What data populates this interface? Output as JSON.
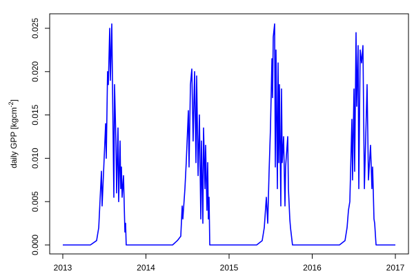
{
  "chart_data": {
    "type": "line",
    "title": "",
    "xlabel": "",
    "ylabel": "daily GPP [kgcm",
    "ylabel_sup": "-2",
    "ylabel_end": "]",
    "xlim": [
      2013,
      2017
    ],
    "ylim": [
      0,
      0.025
    ],
    "grid": false,
    "line_color": "#0000ff",
    "x_ticks": [
      2013,
      2014,
      2015,
      2016,
      2017
    ],
    "x_tick_labels": [
      "2013",
      "2014",
      "2015",
      "2016",
      "2017"
    ],
    "y_ticks": [
      0,
      0.005,
      0.01,
      0.015,
      0.02,
      0.025
    ],
    "y_tick_labels": [
      "0.000",
      "0.005",
      "0.010",
      "0.015",
      "0.020",
      "0.025"
    ],
    "series": [
      {
        "x": [
          2013.0,
          2013.332,
          2013.407,
          2013.432,
          2013.465,
          2013.473,
          2013.515,
          2013.523,
          2013.539,
          2013.548,
          2013.564,
          2013.573,
          2013.589,
          2013.614,
          2013.622,
          2013.639,
          2013.647,
          2013.664,
          2013.672,
          2013.689,
          2013.697,
          2013.705,
          2013.714,
          2013.73,
          2013.747,
          2013.755,
          2013.763,
          2014.32,
          2014.378,
          2014.419,
          2014.436,
          2014.444,
          2014.469,
          2014.485,
          2014.51,
          2014.519,
          2014.535,
          2014.552,
          2014.568,
          2014.585,
          2014.602,
          2014.61,
          2014.627,
          2014.643,
          2014.66,
          2014.668,
          2014.685,
          2014.693,
          2014.71,
          2014.718,
          2014.734,
          2014.743,
          2014.751,
          2014.759,
          2014.768,
          2015.332,
          2015.398,
          2015.423,
          2015.448,
          2015.465,
          2015.481,
          2015.498,
          2015.515,
          2015.523,
          2015.531,
          2015.548,
          2015.556,
          2015.564,
          2015.581,
          2015.589,
          2015.598,
          2015.606,
          2015.622,
          2015.631,
          2015.639,
          2015.656,
          2015.672,
          2015.68,
          2015.705,
          2015.714,
          2015.73,
          2015.739,
          2015.763,
          2016.328,
          2016.394,
          2016.419,
          2016.436,
          2016.452,
          2016.477,
          2016.485,
          2016.502,
          2016.51,
          2016.527,
          2016.535,
          2016.552,
          2016.56,
          2016.577,
          2016.593,
          2016.61,
          2016.627,
          2016.66,
          2016.676,
          2016.701,
          2016.718,
          2016.726,
          2016.734,
          2016.743,
          2016.751,
          2016.768,
          2017.0
        ],
        "y": [
          0,
          0,
          0.0005,
          0.002,
          0.0085,
          0.0045,
          0.014,
          0.01,
          0.02,
          0.0185,
          0.025,
          0.019,
          0.0255,
          0.0055,
          0.0185,
          0.012,
          0.006,
          0.0135,
          0.005,
          0.012,
          0.0065,
          0.009,
          0.0055,
          0.008,
          0.0015,
          0.0025,
          0,
          0,
          0.0005,
          0.001,
          0.0045,
          0.003,
          0.0065,
          0.0095,
          0.0155,
          0.009,
          0.0185,
          0.0203,
          0.012,
          0.02,
          0.0095,
          0.0195,
          0.008,
          0.015,
          0.003,
          0.012,
          0.0025,
          0.0135,
          0.0065,
          0.0115,
          0.004,
          0.0095,
          0.003,
          0.0055,
          0,
          0,
          0.0005,
          0.002,
          0.0055,
          0.0025,
          0.0085,
          0.0135,
          0.0215,
          0.017,
          0.024,
          0.0255,
          0.009,
          0.0225,
          0.0065,
          0.021,
          0.0095,
          0.0185,
          0.0045,
          0.018,
          0.0095,
          0.0125,
          0.0045,
          0.009,
          0.0125,
          0.0065,
          0.003,
          0.002,
          0,
          0,
          0.0005,
          0.002,
          0.004,
          0.005,
          0.0145,
          0.0075,
          0.018,
          0.0085,
          0.0245,
          0.016,
          0.023,
          0.0065,
          0.0225,
          0.021,
          0.023,
          0.0065,
          0.0185,
          0.0075,
          0.0115,
          0.0065,
          0.009,
          0.0065,
          0.003,
          0.0025,
          0,
          0
        ]
      }
    ]
  }
}
